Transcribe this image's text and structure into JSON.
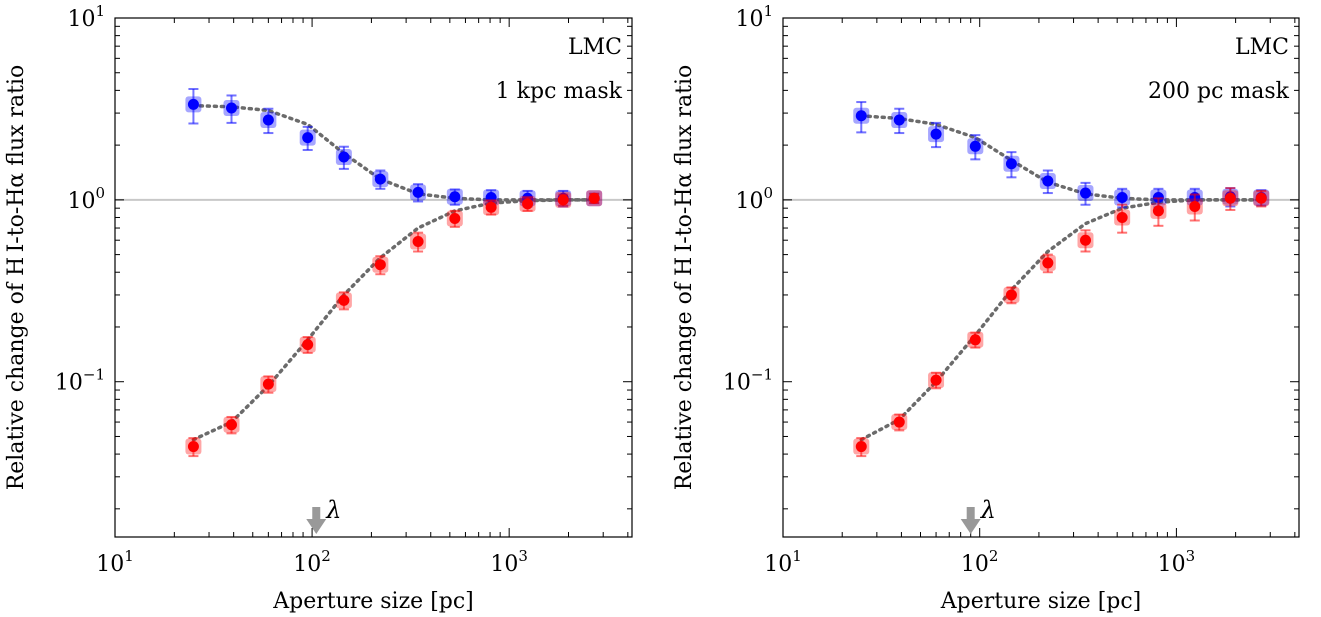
{
  "chart_data": [
    {
      "type": "scatter",
      "annotations": [
        "LMC",
        "1 kpc mask"
      ],
      "xlabel": "Aperture size [pc]",
      "ylabel": "Relative change of H I-to-Hα flux ratio",
      "xscale": "log",
      "yscale": "log",
      "xlim": [
        10,
        4200
      ],
      "ylim": [
        0.014,
        10
      ],
      "x_tick_labels": [
        {
          "value": 10,
          "base": "10",
          "exp": "1"
        },
        {
          "value": 100,
          "base": "10",
          "exp": "2"
        },
        {
          "value": 1000,
          "base": "10",
          "exp": "3"
        }
      ],
      "y_tick_labels": [
        {
          "value": 0.1,
          "base": "10",
          "exp": "−1"
        },
        {
          "value": 1,
          "base": "10",
          "exp": "0"
        },
        {
          "value": 10,
          "base": "10",
          "exp": "1"
        }
      ],
      "reference_line": 1,
      "grid": false,
      "marker": {
        "value": 105,
        "label": "λ",
        "color": "#999999"
      },
      "series": [
        {
          "color": "#0000ff",
          "x": [
            25,
            39,
            60,
            95,
            145,
            222,
            345,
            530,
            810,
            1240,
            1880,
            2700
          ],
          "y": [
            3.35,
            3.2,
            2.75,
            2.2,
            1.72,
            1.3,
            1.1,
            1.04,
            1.03,
            1.02,
            1.02,
            1.02
          ],
          "yerr": [
            0.72,
            0.55,
            0.42,
            0.32,
            0.24,
            0.15,
            0.12,
            0.1,
            0.1,
            0.1,
            0.1,
            0.06
          ],
          "fit": [
            3.3,
            3.25,
            3.1,
            2.6,
            1.8,
            1.3,
            1.08,
            1.02,
            1.0,
            1.0,
            1.0,
            1.0
          ]
        },
        {
          "color": "#ff0000",
          "x": [
            25,
            39,
            60,
            95,
            145,
            222,
            345,
            530,
            810,
            1240,
            1880,
            2700
          ],
          "y": [
            0.044,
            0.058,
            0.097,
            0.16,
            0.28,
            0.44,
            0.59,
            0.79,
            0.91,
            0.95,
            1.0,
            1.02
          ],
          "yerr": [
            0.005,
            0.006,
            0.01,
            0.016,
            0.03,
            0.05,
            0.07,
            0.08,
            0.08,
            0.08,
            0.07,
            0.06
          ],
          "fit": [
            0.048,
            0.06,
            0.095,
            0.17,
            0.3,
            0.48,
            0.7,
            0.87,
            0.96,
            0.99,
            1.0,
            1.0
          ]
        }
      ]
    },
    {
      "type": "scatter",
      "annotations": [
        "LMC",
        "200 pc mask"
      ],
      "xlabel": "Aperture size [pc]",
      "ylabel": "Relative change of H I-to-Hα flux ratio",
      "xscale": "log",
      "yscale": "log",
      "xlim": [
        10,
        4200
      ],
      "ylim": [
        0.014,
        10
      ],
      "x_tick_labels": [
        {
          "value": 10,
          "base": "10",
          "exp": "1"
        },
        {
          "value": 100,
          "base": "10",
          "exp": "2"
        },
        {
          "value": 1000,
          "base": "10",
          "exp": "3"
        }
      ],
      "y_tick_labels": [
        {
          "value": 0.1,
          "base": "10",
          "exp": "−1"
        },
        {
          "value": 1,
          "base": "10",
          "exp": "0"
        },
        {
          "value": 10,
          "base": "10",
          "exp": "1"
        }
      ],
      "reference_line": 1,
      "grid": false,
      "marker": {
        "value": 90,
        "label": "λ",
        "color": "#999999"
      },
      "series": [
        {
          "color": "#0000ff",
          "x": [
            25,
            39,
            60,
            95,
            145,
            222,
            345,
            530,
            810,
            1240,
            1880,
            2700
          ],
          "y": [
            2.9,
            2.75,
            2.3,
            1.97,
            1.58,
            1.27,
            1.09,
            1.03,
            1.03,
            1.03,
            1.04,
            1.03
          ],
          "yerr": [
            0.55,
            0.42,
            0.35,
            0.3,
            0.25,
            0.18,
            0.15,
            0.12,
            0.12,
            0.12,
            0.12,
            0.1
          ],
          "fit": [
            2.9,
            2.8,
            2.6,
            2.2,
            1.65,
            1.25,
            1.08,
            1.02,
            1.0,
            1.0,
            1.0,
            1.0
          ]
        },
        {
          "color": "#ff0000",
          "x": [
            25,
            39,
            60,
            95,
            145,
            222,
            345,
            530,
            810,
            1240,
            1880,
            2700
          ],
          "y": [
            0.044,
            0.06,
            0.102,
            0.17,
            0.3,
            0.45,
            0.6,
            0.8,
            0.87,
            0.92,
            1.02,
            1.02
          ],
          "yerr": [
            0.005,
            0.006,
            0.01,
            0.016,
            0.03,
            0.05,
            0.08,
            0.14,
            0.15,
            0.15,
            0.14,
            0.1
          ],
          "fit": [
            0.048,
            0.062,
            0.1,
            0.18,
            0.32,
            0.52,
            0.74,
            0.9,
            0.97,
            1.0,
            1.0,
            1.0
          ]
        }
      ]
    }
  ]
}
